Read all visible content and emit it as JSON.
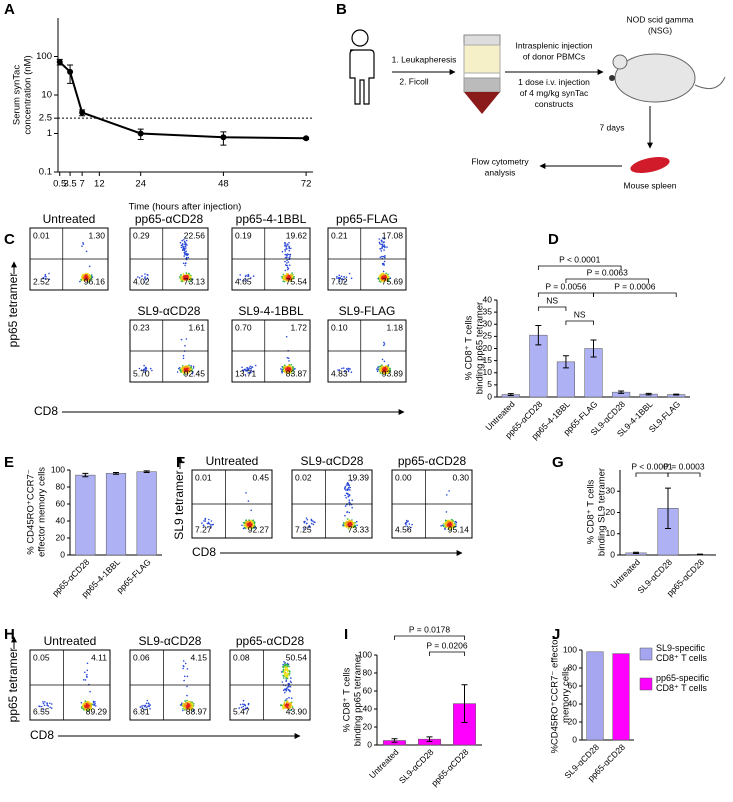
{
  "chart_data": [
    {
      "type": "line",
      "panel": "A",
      "ylabel": "Serum synTac concentration (nM)",
      "xlabel": "Time (hours after injection)",
      "x": [
        0.5,
        3.5,
        7,
        24,
        48,
        72
      ],
      "values": [
        72,
        40,
        3.5,
        1.0,
        0.8,
        0.75
      ],
      "errors": [
        12,
        20,
        0.6,
        0.3,
        0.3,
        0.05
      ],
      "color": "#000000",
      "log_y": true,
      "threshold": 2.5,
      "xlim": [
        0,
        74
      ],
      "xticks": [
        0.5,
        3.5,
        7,
        12,
        24,
        48,
        72
      ],
      "ylim": [
        0.1,
        1000
      ],
      "yticks": [
        0.1,
        1,
        2.5,
        10,
        100
      ]
    },
    {
      "type": "diagram",
      "panel": "B",
      "labels": {
        "leukapheresis": "1. Leukapheresis",
        "ficoll": "2. Ficoll",
        "intrasplenic": "Intrasplenic injection of donor PBMCs",
        "dose": "1 dose i.v. injection of 4 mg/kg synTac constructs",
        "mouse": "NOD scid gamma (NSG)",
        "days": "7 days",
        "flow": "Flow cytometry analysis",
        "spleen": "Mouse spleen"
      }
    },
    {
      "type": "flow",
      "panel": "C",
      "ylabel": "pp65 tetramer",
      "xlabel": "CD8",
      "plots": [
        {
          "title": "Untreated",
          "quadrant_values": [
            0.01,
            1.3,
            2.52,
            96.16
          ],
          "quadrant_labels": [
            "0.01",
            "1.30",
            "2.52",
            "96.16"
          ]
        },
        {
          "title": "pp65-αCD28",
          "quadrant_values": [
            0.29,
            22.56,
            4.02,
            73.13
          ],
          "quadrant_labels": [
            "0.29",
            "22.56",
            "4.02",
            "73.13"
          ]
        },
        {
          "title": "pp65-4-1BBL",
          "quadrant_values": [
            0.19,
            19.62,
            4.65,
            75.54
          ],
          "quadrant_labels": [
            "0.19",
            "19.62",
            "4.65",
            "75.54"
          ]
        },
        {
          "title": "pp65-FLAG",
          "quadrant_values": [
            0.21,
            17.08,
            7.02,
            75.69
          ],
          "quadrant_labels": [
            "0.21",
            "17.08",
            "7.02",
            "75.69"
          ]
        },
        {
          "title": "SL9-αCD28",
          "quadrant_values": [
            0.23,
            1.61,
            5.7,
            92.45
          ],
          "quadrant_labels": [
            "0.23",
            "1.61",
            "5.70",
            "92.45"
          ]
        },
        {
          "title": "SL9-4-1BBL",
          "quadrant_values": [
            0.7,
            1.72,
            13.71,
            83.87
          ],
          "quadrant_labels": [
            "0.70",
            "1.72",
            "13.71",
            "83.87"
          ]
        },
        {
          "title": "SL9-FLAG",
          "quadrant_values": [
            0.1,
            1.18,
            4.83,
            93.89
          ],
          "quadrant_labels": [
            "0.10",
            "1.18",
            "4.83",
            "93.89"
          ]
        }
      ]
    },
    {
      "type": "bar",
      "panel": "D",
      "ylabel": "% CD8⁺ T cells binding pp65 tetramer",
      "categories": [
        "Untreated",
        "pp65-αCD28",
        "pp65-4-1BBL",
        "pp65-FLAG",
        "SL9-αCD28",
        "SL9-4-1BBL",
        "SL9-FLAG"
      ],
      "values": [
        1,
        25.5,
        14.5,
        20,
        2,
        1.2,
        1
      ],
      "errors": [
        0.4,
        4,
        2.5,
        3.5,
        0.5,
        0.3,
        0.2
      ],
      "color": "#aeb1f3",
      "ylim": [
        0,
        40
      ],
      "yticks": [
        0,
        5,
        10,
        15,
        20,
        25,
        30,
        35,
        40
      ],
      "annotations": [
        "P < 0.0001",
        "P = 0.0063",
        "P = 0.0056",
        "P = 0.0006",
        "NS",
        "NS"
      ]
    },
    {
      "type": "bar",
      "panel": "E",
      "ylabel": "% CD45RO⁺CCR7⁻ effector memory cells",
      "categories": [
        "pp65-αCD28",
        "pp65-4-1BBL",
        "pp65-FLAG"
      ],
      "values": [
        94,
        96,
        98
      ],
      "errors": [
        2,
        1,
        1
      ],
      "color": "#aeb1f3",
      "ylim": [
        0,
        100
      ],
      "yticks": [
        0,
        20,
        40,
        60,
        80,
        100
      ]
    },
    {
      "type": "flow",
      "panel": "F",
      "ylabel": "SL9 tetramer",
      "xlabel": "CD8",
      "plots": [
        {
          "title": "Untreated",
          "quadrant_values": [
            0.01,
            0.45,
            7.27,
            92.27
          ],
          "quadrant_labels": [
            "0.01",
            "0.45",
            "7.27",
            "92.27"
          ]
        },
        {
          "title": "SL9-αCD28",
          "quadrant_values": [
            0.02,
            19.39,
            7.25,
            73.33
          ],
          "quadrant_labels": [
            "0.02",
            "19.39",
            "7.25",
            "73.33"
          ]
        },
        {
          "title": "pp65-αCD28",
          "quadrant_values": [
            0,
            0.3,
            4.56,
            95.14
          ],
          "quadrant_labels": [
            "0.00",
            "0.30",
            "4.56",
            "95.14"
          ]
        }
      ]
    },
    {
      "type": "bar",
      "panel": "G",
      "ylabel": "% CD8⁺ T cells binding SL9 tetramer",
      "categories": [
        "Untreated",
        "SL9-αCD28",
        "pp65-αCD28"
      ],
      "values": [
        1,
        22,
        0.3
      ],
      "errors": [
        0.3,
        9.5,
        0.1
      ],
      "color": "#aeb1f3",
      "ylim": [
        0,
        40
      ],
      "yticks": [
        0,
        10,
        20,
        30
      ],
      "annotations": [
        "P < 0.0001",
        "P = 0.0003"
      ]
    },
    {
      "type": "flow",
      "panel": "H",
      "ylabel": "pp65 tetramer",
      "xlabel": "CD8",
      "plots": [
        {
          "title": "Untreated",
          "quadrant_values": [
            0.05,
            4.11,
            6.55,
            89.29
          ],
          "quadrant_labels": [
            "0.05",
            "4.11",
            "6.55",
            "89.29"
          ]
        },
        {
          "title": "SL9-αCD28",
          "quadrant_values": [
            0.06,
            4.15,
            6.81,
            88.97
          ],
          "quadrant_labels": [
            "0.06",
            "4.15",
            "6.81",
            "88.97"
          ]
        },
        {
          "title": "pp65-αCD28",
          "quadrant_values": [
            0.08,
            50.54,
            5.47,
            43.9
          ],
          "quadrant_labels": [
            "0.08",
            "50.54",
            "5.47",
            "43.90"
          ]
        }
      ]
    },
    {
      "type": "bar",
      "panel": "I",
      "ylabel": "% CD8⁺ T cells binding pp65 tetramer",
      "categories": [
        "Untreated",
        "SL9-αCD28",
        "pp65-αCD28"
      ],
      "values": [
        5,
        6.5,
        46
      ],
      "errors": [
        2,
        2.5,
        21
      ],
      "color": "#ff00ff",
      "ylim": [
        0,
        100
      ],
      "yticks": [
        0,
        20,
        40,
        60,
        80,
        100
      ],
      "annotations": [
        "P = 0.0178",
        "P = 0.0206"
      ]
    },
    {
      "type": "bar",
      "panel": "J",
      "ylabel": "%CD45RO⁺CCR7⁻ effector memory cells",
      "categories": [
        "SL9-αCD28",
        "pp65-αCD28"
      ],
      "series": [
        {
          "name": "SL9-specific CD8⁺ T cells",
          "color": "#a6a6f0",
          "values": [
            98,
            null
          ]
        },
        {
          "name": "pp65-specific CD8⁺ T cells",
          "color": "#ff00ff",
          "values": [
            null,
            96
          ]
        }
      ],
      "ylim": [
        0,
        100
      ],
      "yticks": [
        0,
        20,
        40,
        60,
        80,
        100
      ]
    }
  ]
}
